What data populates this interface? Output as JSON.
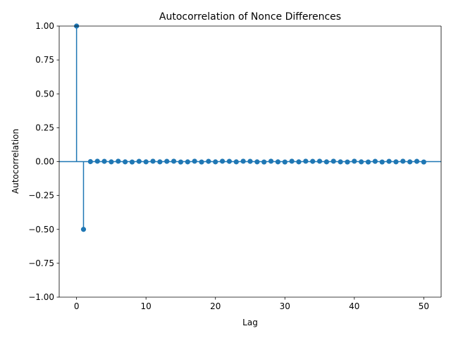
{
  "chart_data": {
    "type": "stem",
    "title": "Autocorrelation of Nonce Differences",
    "xlabel": "Lag",
    "ylabel": "Autocorrelation",
    "xlim": [
      -2.5,
      52.5
    ],
    "ylim": [
      -1.0,
      1.0
    ],
    "x_ticks": [
      0,
      10,
      20,
      30,
      40,
      50
    ],
    "x_tick_labels": [
      "0",
      "10",
      "20",
      "30",
      "40",
      "50"
    ],
    "y_ticks": [
      -1.0,
      -0.75,
      -0.5,
      -0.25,
      0.0,
      0.25,
      0.5,
      0.75,
      1.0
    ],
    "y_tick_labels": [
      "−1.00",
      "−0.75",
      "−0.50",
      "−0.25",
      "0.00",
      "0.25",
      "0.50",
      "0.75",
      "1.00"
    ],
    "baseline": 0,
    "grid": false,
    "series": [
      {
        "color": "#1f77b4",
        "x": [
          0,
          1,
          2,
          3,
          4,
          5,
          6,
          7,
          8,
          9,
          10,
          11,
          12,
          13,
          14,
          15,
          16,
          17,
          18,
          19,
          20,
          21,
          22,
          23,
          24,
          25,
          26,
          27,
          28,
          29,
          30,
          31,
          32,
          33,
          34,
          35,
          36,
          37,
          38,
          39,
          40,
          41,
          42,
          43,
          44,
          45,
          46,
          47,
          48,
          49,
          50
        ],
        "y": [
          1.0,
          -0.5,
          0.0,
          0.003,
          0.002,
          -0.002,
          0.003,
          -0.002,
          -0.003,
          0.002,
          -0.002,
          0.003,
          -0.002,
          0.002,
          0.003,
          -0.003,
          -0.002,
          0.003,
          -0.003,
          0.002,
          -0.002,
          0.003,
          0.002,
          -0.002,
          0.003,
          0.002,
          -0.002,
          -0.003,
          0.003,
          -0.002,
          -0.003,
          0.003,
          -0.002,
          0.003,
          0.002,
          0.003,
          -0.002,
          0.003,
          -0.002,
          -0.003,
          0.003,
          -0.002,
          -0.003,
          0.002,
          -0.003,
          0.002,
          -0.002,
          0.003,
          -0.002,
          0.002,
          -0.003
        ]
      }
    ]
  }
}
